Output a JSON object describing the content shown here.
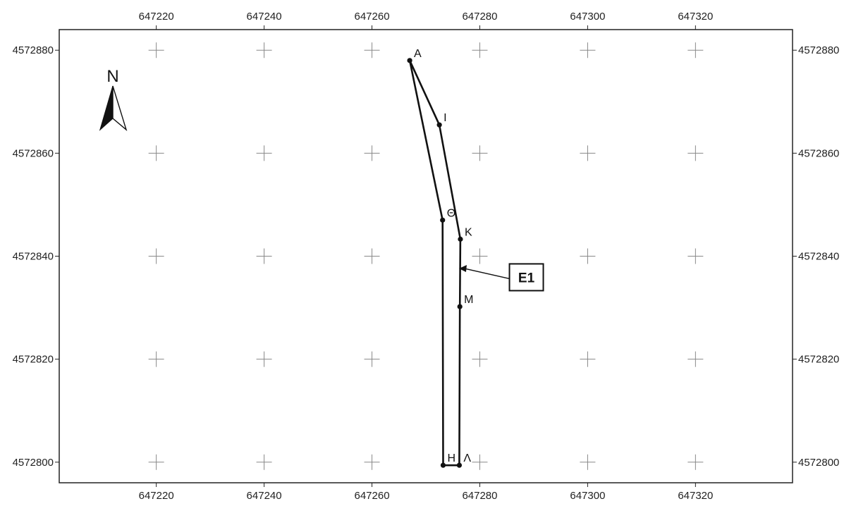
{
  "map": {
    "colors": {
      "frame": "#222222",
      "grid_cross": "#888888",
      "boundary": "#111111",
      "background": "#ffffff"
    },
    "x_range": [
      647202,
      647338
    ],
    "y_range": [
      4572796,
      4572884
    ],
    "x_ticks": [
      647220,
      647240,
      647260,
      647280,
      647300,
      647320
    ],
    "y_ticks": [
      4572800,
      4572820,
      4572840,
      4572860,
      4572880
    ],
    "north_arrow": {
      "label": "N",
      "icon": "north-arrow-icon"
    },
    "points": [
      {
        "id": "A",
        "label": "A",
        "x": 647267.0,
        "y": 4572878.0,
        "label_pos": "ne"
      },
      {
        "id": "I",
        "label": "I",
        "x": 647272.5,
        "y": 4572865.5,
        "label_pos": "ne"
      },
      {
        "id": "K",
        "label": "K",
        "x": 647276.4,
        "y": 4572843.3,
        "label_pos": "ne"
      },
      {
        "id": "M",
        "label": "M",
        "x": 647276.3,
        "y": 4572830.2,
        "label_pos": "ne"
      },
      {
        "id": "L",
        "label": "Λ",
        "x": 647276.2,
        "y": 4572799.4,
        "label_pos": "ne"
      },
      {
        "id": "H",
        "label": "H",
        "x": 647273.2,
        "y": 4572799.4,
        "label_pos": "ne"
      },
      {
        "id": "TH",
        "label": "Θ",
        "x": 647273.1,
        "y": 4572847.0,
        "label_pos": "ne"
      }
    ],
    "polygon_order": [
      "A",
      "I",
      "K",
      "M",
      "L",
      "H",
      "TH",
      "A"
    ],
    "callout": {
      "label": "E1",
      "target_x": 647276.4,
      "target_y": 4572837.6,
      "box_x": 647285.5,
      "box_y": 4572837.0
    }
  }
}
